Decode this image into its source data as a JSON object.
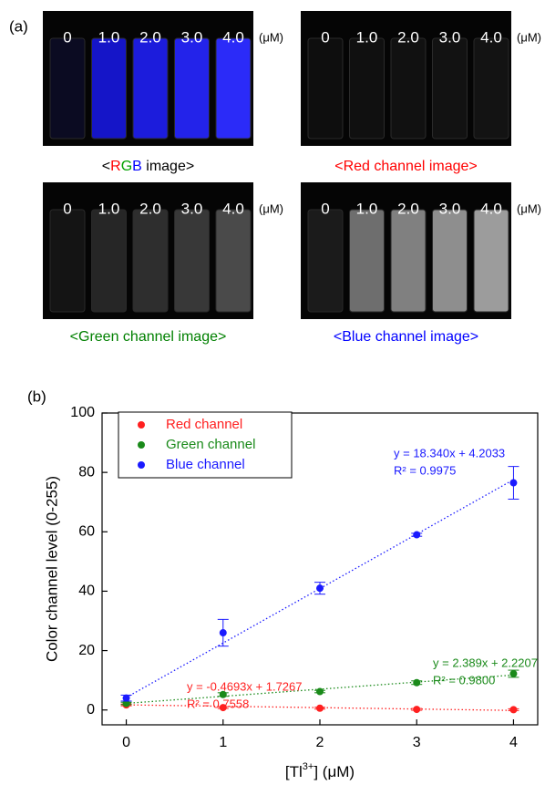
{
  "panel_a": {
    "label": "(a)",
    "concentrations": [
      "0",
      "1.0",
      "2.0",
      "3.0",
      "4.0"
    ],
    "unit": "(μM)",
    "images": [
      {
        "caption": [
          {
            "text": "<",
            "color": "#000000"
          },
          {
            "text": "R",
            "color": "#ff0000"
          },
          {
            "text": "G",
            "color": "#00a000"
          },
          {
            "text": "B",
            "color": "#0000ff"
          },
          {
            "text": " image>",
            "color": "#000000"
          }
        ]
      },
      {
        "caption": [
          {
            "text": "<Red channel image>",
            "color": "#ff0000"
          }
        ]
      },
      {
        "caption": [
          {
            "text": "<Green channel image>",
            "color": "#008000"
          }
        ]
      },
      {
        "caption": [
          {
            "text": "<Blue channel image>",
            "color": "#0000ff"
          }
        ]
      }
    ]
  },
  "chart_data": {
    "type": "scatter",
    "panel_label": "(b)",
    "y_label": "Color channel level (0-255)",
    "x_label": [
      {
        "text": "[Tl"
      },
      {
        "text": "3+",
        "sup": true
      },
      {
        "text": "] (μM)"
      }
    ],
    "x": [
      0,
      1,
      2,
      3,
      4
    ],
    "xlim": [
      -0.25,
      4.25
    ],
    "xticks": [
      0,
      1,
      2,
      3,
      4
    ],
    "ylim": [
      -5,
      100
    ],
    "yticks": [
      0,
      20,
      40,
      60,
      80,
      100
    ],
    "legend": "upper left",
    "series": [
      {
        "name": "Red channel",
        "color": "#ff2020",
        "values": [
          1.7,
          0.8,
          0.6,
          0.2,
          0.1
        ],
        "errors": [
          0.3,
          0.3,
          0.3,
          0.3,
          0.3
        ],
        "fit": {
          "slope": -0.4693,
          "intercept": 1.7267
        },
        "equation": "y = -0.4693x + 1.7267",
        "r2": "R² = 0.7558"
      },
      {
        "name": "Green channel",
        "color": "#1a8a1a",
        "values": [
          2.2,
          5.2,
          6.2,
          9.2,
          12.2
        ],
        "errors": [
          0.4,
          0.6,
          0.4,
          0.6,
          1.2
        ],
        "fit": {
          "slope": 2.389,
          "intercept": 2.2207
        },
        "equation": "y = 2.389x + 2.2207",
        "r2": "R² = 0.9800"
      },
      {
        "name": "Blue channel",
        "color": "#1a1aff",
        "values": [
          4,
          26,
          41,
          59,
          76.5
        ],
        "errors": [
          1,
          4.5,
          2,
          0.5,
          5.5
        ],
        "fit": {
          "slope": 18.34,
          "intercept": 4.2033
        },
        "equation": "y = 18.340x + 4.2033",
        "r2": "R² = 0.9975"
      }
    ]
  }
}
